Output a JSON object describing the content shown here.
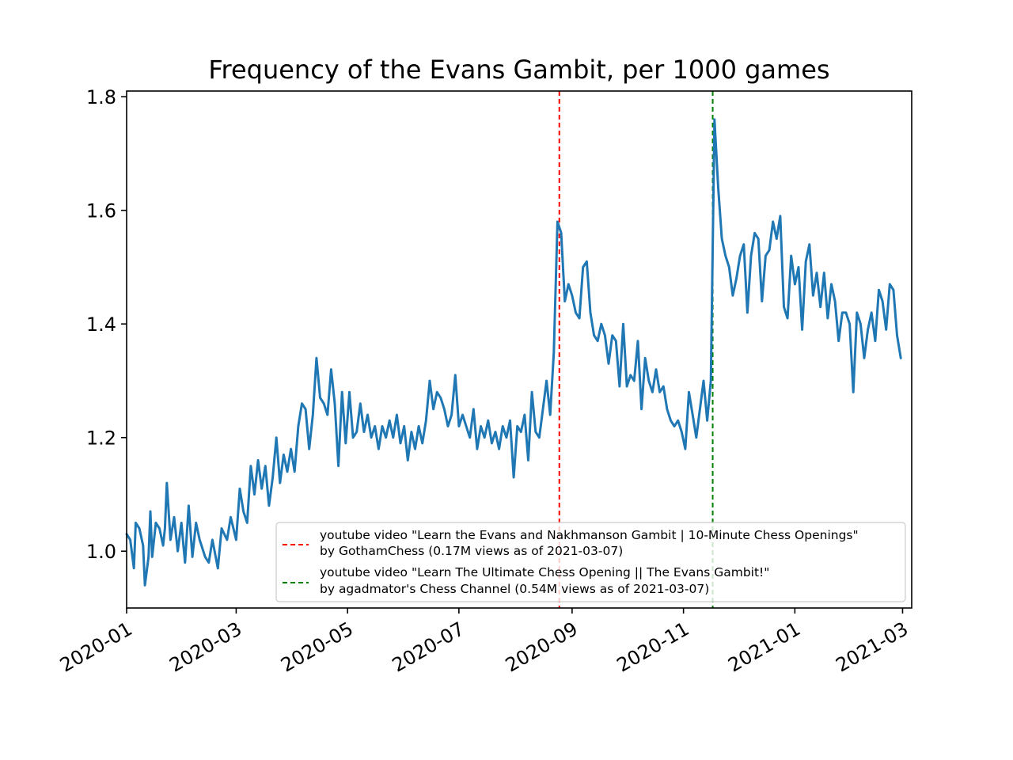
{
  "chart_data": {
    "type": "line",
    "title": "Frequency of the Evans Gambit, per 1000 games",
    "xlabel": "",
    "ylabel": "",
    "x_axis_type": "date",
    "xlim": [
      "2020-01-01",
      "2021-03-06"
    ],
    "ylim": [
      0.9,
      1.81
    ],
    "x_ticks": [
      "2020-01",
      "2020-03",
      "2020-05",
      "2020-07",
      "2020-09",
      "2020-11",
      "2021-01",
      "2021-03"
    ],
    "y_ticks": [
      "1.0",
      "1.2",
      "1.4",
      "1.6",
      "1.8"
    ],
    "grid": false,
    "legend_position": "lower-right",
    "series": [
      {
        "color": "#1f77b4",
        "points": [
          [
            "2020-01-01",
            1.03
          ],
          [
            "2020-01-03",
            1.02
          ],
          [
            "2020-01-05",
            0.97
          ],
          [
            "2020-01-06",
            1.05
          ],
          [
            "2020-01-08",
            1.04
          ],
          [
            "2020-01-10",
            1.01
          ],
          [
            "2020-01-11",
            0.94
          ],
          [
            "2020-01-13",
            0.99
          ],
          [
            "2020-01-14",
            1.07
          ],
          [
            "2020-01-15",
            0.99
          ],
          [
            "2020-01-17",
            1.05
          ],
          [
            "2020-01-19",
            1.04
          ],
          [
            "2020-01-21",
            1.01
          ],
          [
            "2020-01-22",
            1.04
          ],
          [
            "2020-01-23",
            1.12
          ],
          [
            "2020-01-25",
            1.02
          ],
          [
            "2020-01-27",
            1.06
          ],
          [
            "2020-01-29",
            1.0
          ],
          [
            "2020-01-31",
            1.05
          ],
          [
            "2020-02-02",
            0.98
          ],
          [
            "2020-02-04",
            1.08
          ],
          [
            "2020-02-06",
            0.99
          ],
          [
            "2020-02-08",
            1.05
          ],
          [
            "2020-02-10",
            1.02
          ],
          [
            "2020-02-13",
            0.99
          ],
          [
            "2020-02-15",
            0.98
          ],
          [
            "2020-02-17",
            1.02
          ],
          [
            "2020-02-20",
            0.97
          ],
          [
            "2020-02-22",
            1.04
          ],
          [
            "2020-02-25",
            1.02
          ],
          [
            "2020-02-27",
            1.06
          ],
          [
            "2020-03-01",
            1.02
          ],
          [
            "2020-03-03",
            1.11
          ],
          [
            "2020-03-05",
            1.07
          ],
          [
            "2020-03-07",
            1.05
          ],
          [
            "2020-03-09",
            1.15
          ],
          [
            "2020-03-11",
            1.1
          ],
          [
            "2020-03-13",
            1.16
          ],
          [
            "2020-03-15",
            1.11
          ],
          [
            "2020-03-17",
            1.15
          ],
          [
            "2020-03-19",
            1.08
          ],
          [
            "2020-03-21",
            1.13
          ],
          [
            "2020-03-23",
            1.2
          ],
          [
            "2020-03-25",
            1.12
          ],
          [
            "2020-03-27",
            1.17
          ],
          [
            "2020-03-29",
            1.14
          ],
          [
            "2020-03-31",
            1.18
          ],
          [
            "2020-04-02",
            1.14
          ],
          [
            "2020-04-04",
            1.22
          ],
          [
            "2020-04-06",
            1.26
          ],
          [
            "2020-04-08",
            1.25
          ],
          [
            "2020-04-10",
            1.18
          ],
          [
            "2020-04-12",
            1.24
          ],
          [
            "2020-04-14",
            1.34
          ],
          [
            "2020-04-16",
            1.27
          ],
          [
            "2020-04-18",
            1.26
          ],
          [
            "2020-04-20",
            1.24
          ],
          [
            "2020-04-22",
            1.32
          ],
          [
            "2020-04-24",
            1.26
          ],
          [
            "2020-04-26",
            1.15
          ],
          [
            "2020-04-28",
            1.28
          ],
          [
            "2020-04-30",
            1.19
          ],
          [
            "2020-05-02",
            1.28
          ],
          [
            "2020-05-04",
            1.2
          ],
          [
            "2020-05-06",
            1.21
          ],
          [
            "2020-05-08",
            1.26
          ],
          [
            "2020-05-10",
            1.21
          ],
          [
            "2020-05-12",
            1.24
          ],
          [
            "2020-05-14",
            1.2
          ],
          [
            "2020-05-16",
            1.22
          ],
          [
            "2020-05-18",
            1.18
          ],
          [
            "2020-05-20",
            1.22
          ],
          [
            "2020-05-22",
            1.2
          ],
          [
            "2020-05-24",
            1.23
          ],
          [
            "2020-05-26",
            1.2
          ],
          [
            "2020-05-28",
            1.24
          ],
          [
            "2020-05-30",
            1.19
          ],
          [
            "2020-06-01",
            1.22
          ],
          [
            "2020-06-03",
            1.16
          ],
          [
            "2020-06-05",
            1.21
          ],
          [
            "2020-06-07",
            1.18
          ],
          [
            "2020-06-09",
            1.22
          ],
          [
            "2020-06-11",
            1.19
          ],
          [
            "2020-06-13",
            1.23
          ],
          [
            "2020-06-15",
            1.3
          ],
          [
            "2020-06-17",
            1.25
          ],
          [
            "2020-06-19",
            1.28
          ],
          [
            "2020-06-21",
            1.27
          ],
          [
            "2020-06-23",
            1.25
          ],
          [
            "2020-06-25",
            1.22
          ],
          [
            "2020-06-27",
            1.24
          ],
          [
            "2020-06-29",
            1.31
          ],
          [
            "2020-07-01",
            1.22
          ],
          [
            "2020-07-03",
            1.24
          ],
          [
            "2020-07-05",
            1.22
          ],
          [
            "2020-07-07",
            1.2
          ],
          [
            "2020-07-09",
            1.25
          ],
          [
            "2020-07-11",
            1.18
          ],
          [
            "2020-07-13",
            1.22
          ],
          [
            "2020-07-15",
            1.2
          ],
          [
            "2020-07-17",
            1.23
          ],
          [
            "2020-07-19",
            1.19
          ],
          [
            "2020-07-21",
            1.21
          ],
          [
            "2020-07-23",
            1.18
          ],
          [
            "2020-07-25",
            1.22
          ],
          [
            "2020-07-27",
            1.2
          ],
          [
            "2020-07-29",
            1.23
          ],
          [
            "2020-07-31",
            1.13
          ],
          [
            "2020-08-02",
            1.22
          ],
          [
            "2020-08-04",
            1.21
          ],
          [
            "2020-08-06",
            1.24
          ],
          [
            "2020-08-08",
            1.16
          ],
          [
            "2020-08-10",
            1.28
          ],
          [
            "2020-08-12",
            1.21
          ],
          [
            "2020-08-14",
            1.2
          ],
          [
            "2020-08-16",
            1.25
          ],
          [
            "2020-08-18",
            1.3
          ],
          [
            "2020-08-20",
            1.24
          ],
          [
            "2020-08-22",
            1.35
          ],
          [
            "2020-08-24",
            1.58
          ],
          [
            "2020-08-26",
            1.56
          ],
          [
            "2020-08-28",
            1.44
          ],
          [
            "2020-08-30",
            1.47
          ],
          [
            "2020-09-01",
            1.45
          ],
          [
            "2020-09-03",
            1.42
          ],
          [
            "2020-09-05",
            1.41
          ],
          [
            "2020-09-07",
            1.5
          ],
          [
            "2020-09-09",
            1.51
          ],
          [
            "2020-09-11",
            1.42
          ],
          [
            "2020-09-13",
            1.38
          ],
          [
            "2020-09-15",
            1.37
          ],
          [
            "2020-09-17",
            1.4
          ],
          [
            "2020-09-19",
            1.38
          ],
          [
            "2020-09-21",
            1.33
          ],
          [
            "2020-09-23",
            1.38
          ],
          [
            "2020-09-25",
            1.37
          ],
          [
            "2020-09-27",
            1.29
          ],
          [
            "2020-09-29",
            1.4
          ],
          [
            "2020-10-01",
            1.29
          ],
          [
            "2020-10-03",
            1.31
          ],
          [
            "2020-10-05",
            1.3
          ],
          [
            "2020-10-07",
            1.37
          ],
          [
            "2020-10-09",
            1.25
          ],
          [
            "2020-10-11",
            1.34
          ],
          [
            "2020-10-13",
            1.3
          ],
          [
            "2020-10-15",
            1.28
          ],
          [
            "2020-10-17",
            1.32
          ],
          [
            "2020-10-19",
            1.28
          ],
          [
            "2020-10-21",
            1.29
          ],
          [
            "2020-10-23",
            1.25
          ],
          [
            "2020-10-25",
            1.23
          ],
          [
            "2020-10-27",
            1.22
          ],
          [
            "2020-10-29",
            1.23
          ],
          [
            "2020-10-31",
            1.21
          ],
          [
            "2020-11-02",
            1.18
          ],
          [
            "2020-11-04",
            1.28
          ],
          [
            "2020-11-06",
            1.24
          ],
          [
            "2020-11-08",
            1.2
          ],
          [
            "2020-11-10",
            1.25
          ],
          [
            "2020-11-12",
            1.3
          ],
          [
            "2020-11-14",
            1.23
          ],
          [
            "2020-11-16",
            1.3
          ],
          [
            "2020-11-18",
            1.76
          ],
          [
            "2020-11-20",
            1.64
          ],
          [
            "2020-11-22",
            1.55
          ],
          [
            "2020-11-24",
            1.52
          ],
          [
            "2020-11-26",
            1.5
          ],
          [
            "2020-11-28",
            1.45
          ],
          [
            "2020-11-30",
            1.48
          ],
          [
            "2020-12-02",
            1.52
          ],
          [
            "2020-12-04",
            1.54
          ],
          [
            "2020-12-06",
            1.42
          ],
          [
            "2020-12-08",
            1.52
          ],
          [
            "2020-12-10",
            1.56
          ],
          [
            "2020-12-12",
            1.55
          ],
          [
            "2020-12-14",
            1.44
          ],
          [
            "2020-12-16",
            1.52
          ],
          [
            "2020-12-18",
            1.53
          ],
          [
            "2020-12-20",
            1.58
          ],
          [
            "2020-12-22",
            1.55
          ],
          [
            "2020-12-24",
            1.59
          ],
          [
            "2020-12-26",
            1.43
          ],
          [
            "2020-12-28",
            1.41
          ],
          [
            "2020-12-30",
            1.52
          ],
          [
            "2021-01-01",
            1.47
          ],
          [
            "2021-01-03",
            1.5
          ],
          [
            "2021-01-05",
            1.39
          ],
          [
            "2021-01-07",
            1.51
          ],
          [
            "2021-01-09",
            1.54
          ],
          [
            "2021-01-11",
            1.45
          ],
          [
            "2021-01-13",
            1.49
          ],
          [
            "2021-01-15",
            1.43
          ],
          [
            "2021-01-17",
            1.49
          ],
          [
            "2021-01-19",
            1.41
          ],
          [
            "2021-01-21",
            1.47
          ],
          [
            "2021-01-23",
            1.44
          ],
          [
            "2021-01-25",
            1.37
          ],
          [
            "2021-01-27",
            1.42
          ],
          [
            "2021-01-29",
            1.42
          ],
          [
            "2021-01-31",
            1.4
          ],
          [
            "2021-02-02",
            1.28
          ],
          [
            "2021-02-04",
            1.42
          ],
          [
            "2021-02-06",
            1.4
          ],
          [
            "2021-02-08",
            1.34
          ],
          [
            "2021-02-10",
            1.39
          ],
          [
            "2021-02-12",
            1.42
          ],
          [
            "2021-02-14",
            1.37
          ],
          [
            "2021-02-16",
            1.46
          ],
          [
            "2021-02-18",
            1.44
          ],
          [
            "2021-02-20",
            1.39
          ],
          [
            "2021-02-22",
            1.47
          ],
          [
            "2021-02-24",
            1.46
          ],
          [
            "2021-02-26",
            1.38
          ],
          [
            "2021-02-28",
            1.34
          ]
        ]
      }
    ],
    "vlines": [
      {
        "date": "2020-08-25",
        "color": "#ff0000",
        "style": "dashed",
        "label_line1": "youtube video \"Learn the Evans and Nakhmanson Gambit | 10-Minute Chess Openings\"",
        "label_line2": "by GothamChess (0.17M views as of 2021-03-07)"
      },
      {
        "date": "2020-11-17",
        "color": "#008000",
        "style": "dashed",
        "label_line1": "youtube video \"Learn The Ultimate Chess Opening || The Evans Gambit!\"",
        "label_line2": "by agadmator's Chess Channel (0.54M views as of 2021-03-07)"
      }
    ]
  }
}
